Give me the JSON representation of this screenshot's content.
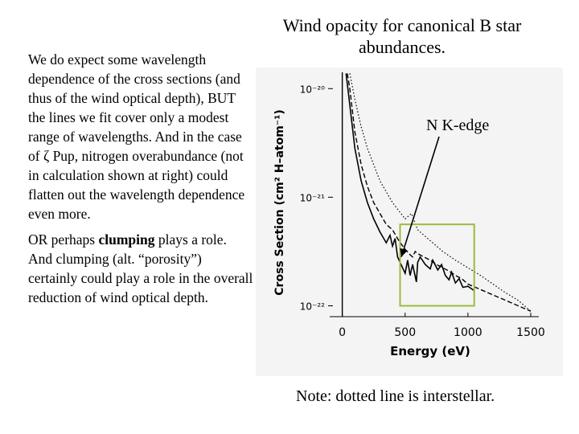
{
  "slide": {
    "title": "Wind opacity for canonical B star abundances.",
    "paragraph1": "We do expect some wavelength dependence of the cross sections (and thus of the wind optical depth), BUT the lines we fit cover only a modest range of wavelengths.  And in the case of ζ Pup, nitrogen overabundance (not in calculation shown at right) could flatten out the wavelength dependence even more.",
    "paragraph2_before": "OR perhaps ",
    "paragraph2_bold": "clumping",
    "paragraph2_after": " plays a role.  And clumping (alt. “porosity”) certainly could play a role in the overall reduction of wind optical depth.",
    "annotation": "N K-edge",
    "note": "Note: dotted line is interstellar."
  },
  "colors": {
    "highlight_box": "#9bbb3c",
    "figure_background": "#f4f4f4",
    "ink": "#000000"
  },
  "chart_data": {
    "type": "line",
    "xlabel": "Energy (eV)",
    "ylabel": "Cross Section (cm² H–atom⁻¹)",
    "xlim": [
      -100,
      1500
    ],
    "ylim_log10": [
      -22.1,
      -19.85
    ],
    "x_ticks": [
      0,
      500,
      1000,
      1500
    ],
    "x_tick_labels": [
      "0",
      "500",
      "1000",
      "1500"
    ],
    "y_ticks_log10": [
      -20,
      -21,
      -22
    ],
    "y_tick_labels": [
      "10⁻²⁰",
      "10⁻²¹",
      "10⁻²²"
    ],
    "highlight_region": {
      "x": [
        460,
        1050
      ],
      "log10_y": [
        -21.25,
        -22.0
      ]
    },
    "series": [
      {
        "style": "solid",
        "points": [
          [
            30,
            -19.86
          ],
          [
            50,
            -20.05
          ],
          [
            100,
            -20.55
          ],
          [
            150,
            -20.85
          ],
          [
            200,
            -21.05
          ],
          [
            250,
            -21.2
          ],
          [
            300,
            -21.32
          ],
          [
            350,
            -21.42
          ],
          [
            380,
            -21.35
          ],
          [
            400,
            -21.45
          ],
          [
            420,
            -21.38
          ],
          [
            440,
            -21.55
          ],
          [
            480,
            -21.65
          ],
          [
            500,
            -21.7
          ],
          [
            520,
            -21.58
          ],
          [
            540,
            -21.72
          ],
          [
            560,
            -21.62
          ],
          [
            590,
            -21.78
          ],
          [
            600,
            -21.6
          ],
          [
            620,
            -21.55
          ],
          [
            660,
            -21.62
          ],
          [
            700,
            -21.66
          ],
          [
            720,
            -21.58
          ],
          [
            760,
            -21.67
          ],
          [
            790,
            -21.62
          ],
          [
            820,
            -21.72
          ],
          [
            850,
            -21.76
          ],
          [
            870,
            -21.69
          ],
          [
            900,
            -21.79
          ],
          [
            930,
            -21.75
          ],
          [
            960,
            -21.83
          ],
          [
            1000,
            -21.82
          ],
          [
            1050,
            -21.86
          ]
        ]
      },
      {
        "style": "dashed",
        "points": [
          [
            40,
            -19.86
          ],
          [
            60,
            -20.0
          ],
          [
            100,
            -20.4
          ],
          [
            150,
            -20.7
          ],
          [
            200,
            -20.9
          ],
          [
            250,
            -21.05
          ],
          [
            300,
            -21.15
          ],
          [
            350,
            -21.25
          ],
          [
            400,
            -21.3
          ],
          [
            450,
            -21.4
          ],
          [
            500,
            -21.48
          ],
          [
            540,
            -21.53
          ],
          [
            560,
            -21.55
          ],
          [
            580,
            -21.5
          ],
          [
            600,
            -21.52
          ],
          [
            650,
            -21.55
          ],
          [
            700,
            -21.58
          ],
          [
            750,
            -21.62
          ],
          [
            800,
            -21.65
          ],
          [
            850,
            -21.68
          ],
          [
            900,
            -21.72
          ],
          [
            950,
            -21.75
          ],
          [
            1000,
            -21.8
          ],
          [
            1100,
            -21.85
          ],
          [
            1200,
            -21.9
          ],
          [
            1300,
            -21.95
          ],
          [
            1400,
            -22.0
          ],
          [
            1500,
            -22.05
          ]
        ]
      },
      {
        "style": "dotted",
        "points": [
          [
            60,
            -19.86
          ],
          [
            100,
            -20.1
          ],
          [
            150,
            -20.35
          ],
          [
            200,
            -20.55
          ],
          [
            300,
            -20.85
          ],
          [
            400,
            -21.05
          ],
          [
            500,
            -21.2
          ],
          [
            550,
            -21.15
          ],
          [
            600,
            -21.3
          ],
          [
            700,
            -21.4
          ],
          [
            800,
            -21.5
          ],
          [
            900,
            -21.58
          ],
          [
            1000,
            -21.65
          ],
          [
            1100,
            -21.72
          ],
          [
            1200,
            -21.8
          ],
          [
            1300,
            -21.88
          ],
          [
            1400,
            -21.95
          ],
          [
            1500,
            -22.05
          ]
        ]
      }
    ]
  }
}
